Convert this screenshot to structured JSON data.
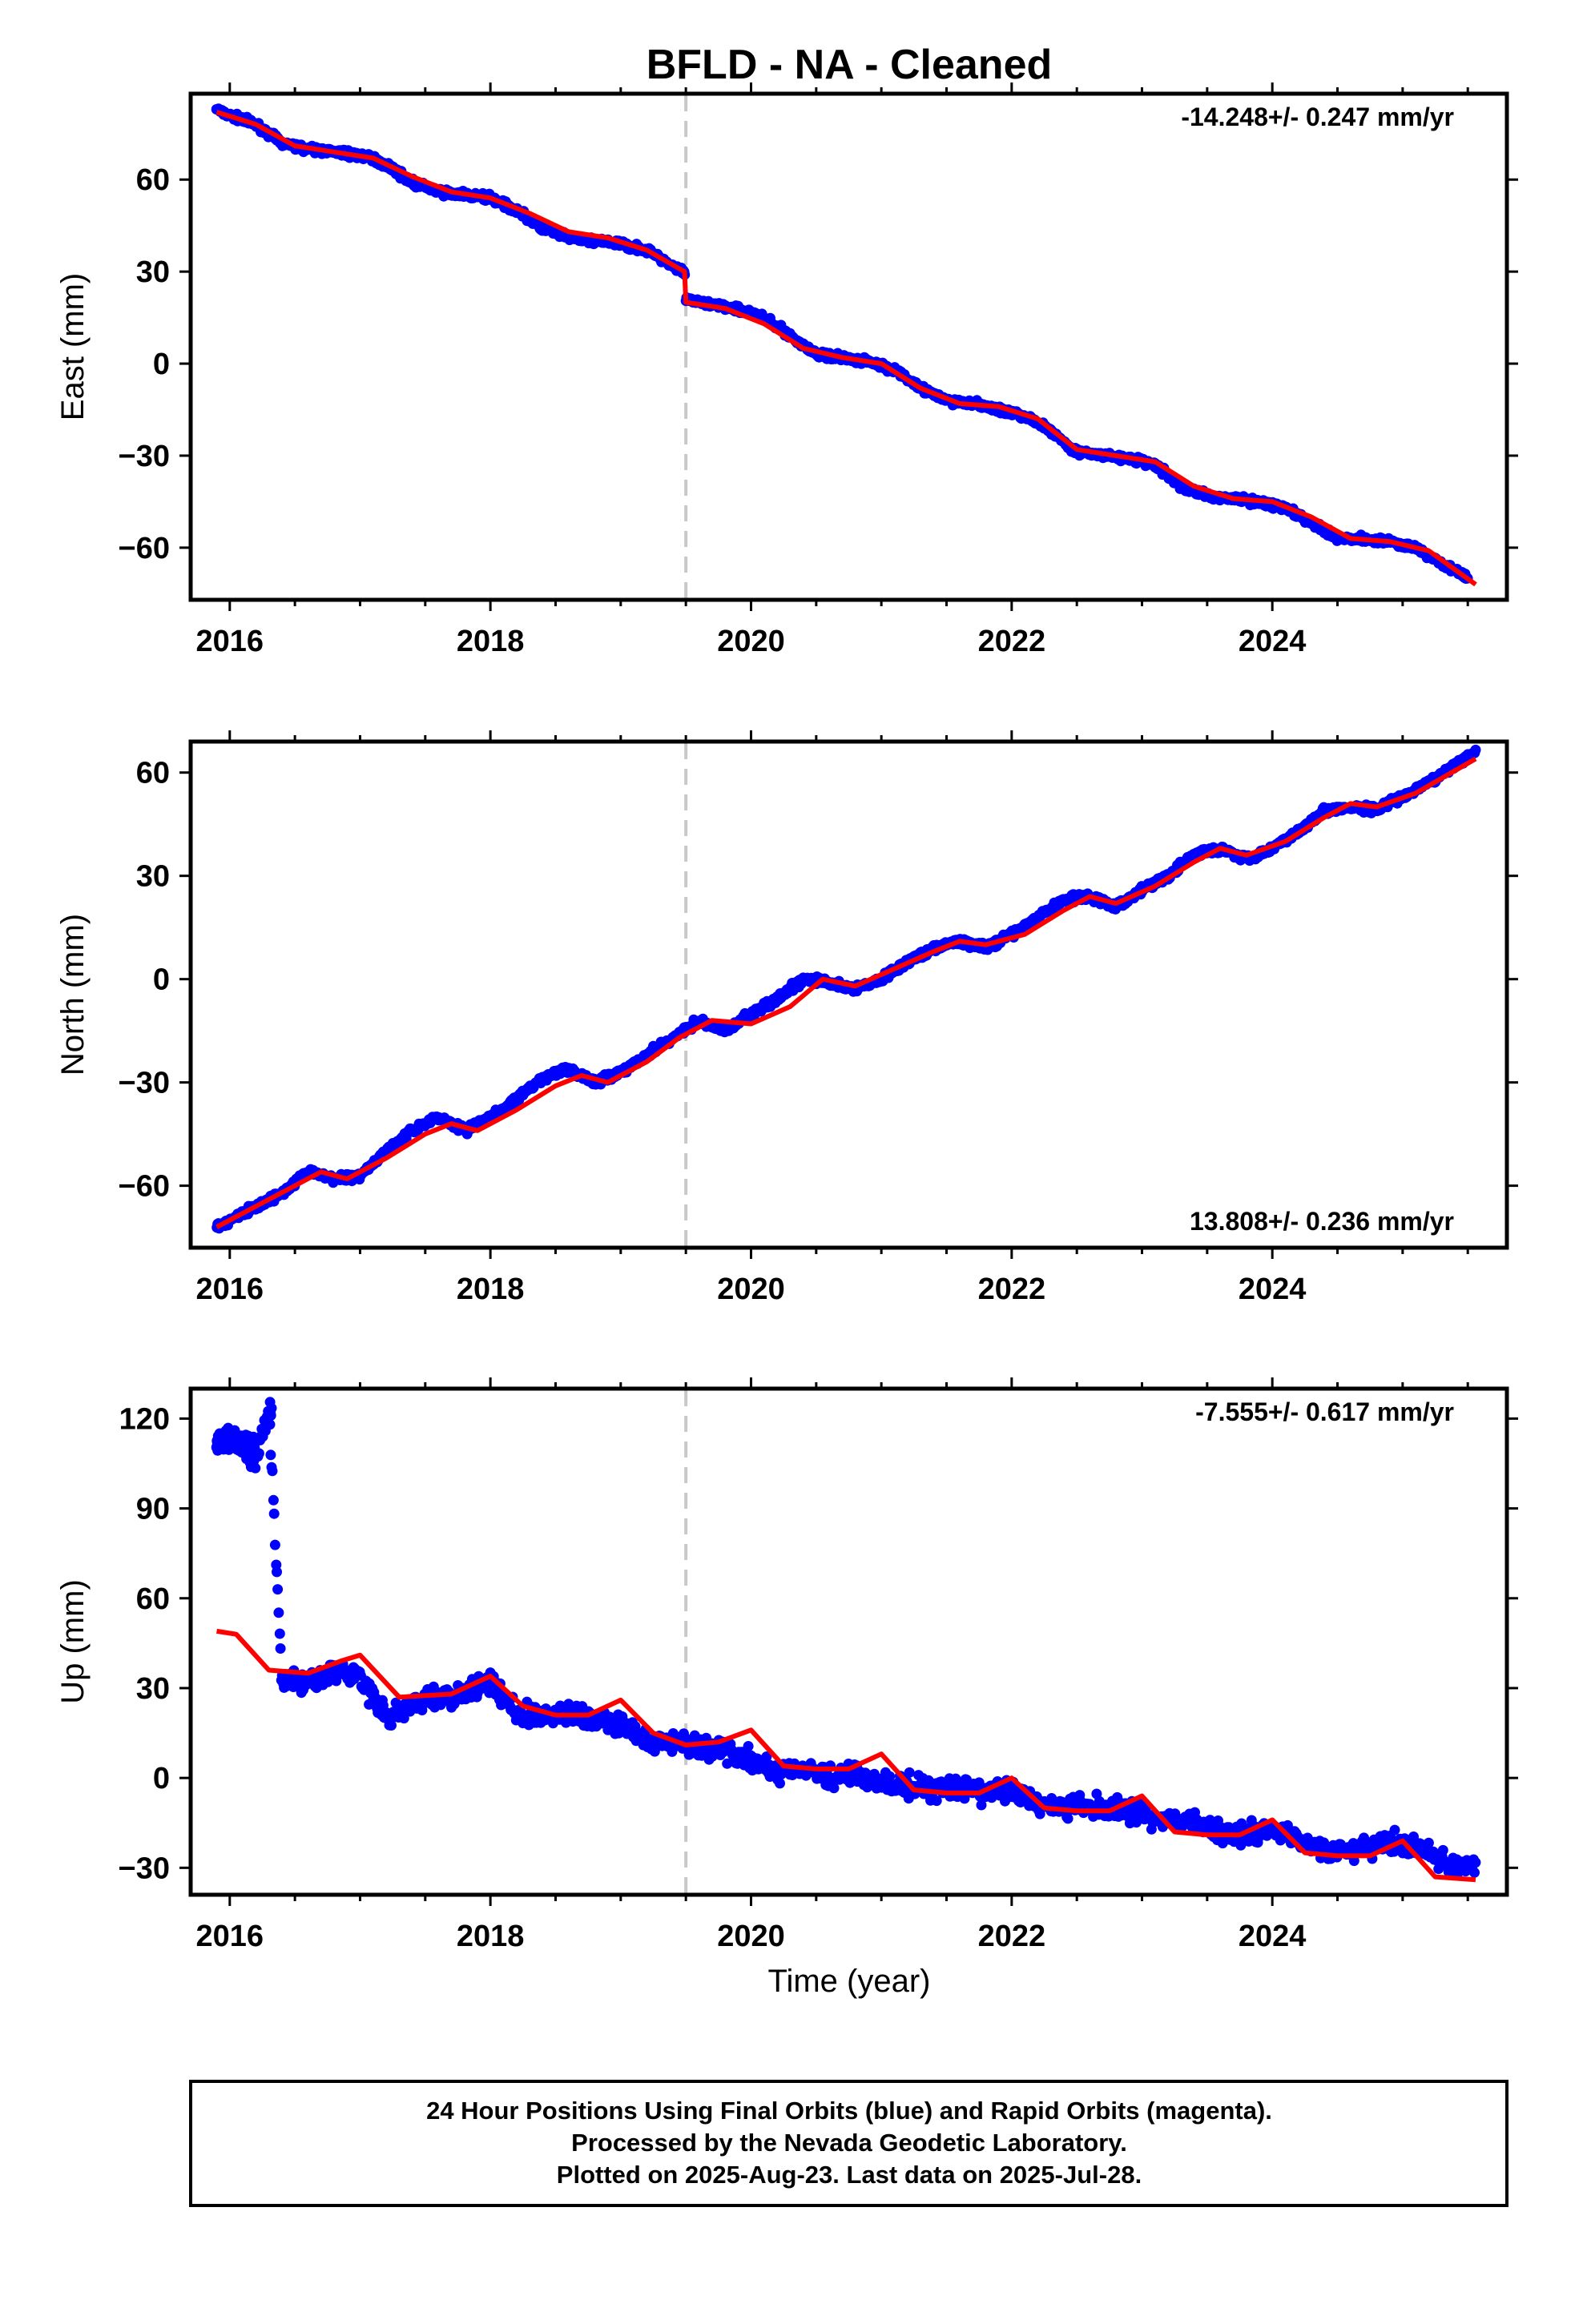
{
  "title": "BFLD  - NA - Cleaned",
  "xlabel": "Time (year)",
  "footer": {
    "line1": "24 Hour Positions Using Final Orbits (blue) and Rapid Orbits (magenta).",
    "line2": "Processed by the Nevada Geodetic Laboratory.",
    "line3": "Plotted on 2025-Aug-23. Last data on 2025-Jul-28."
  },
  "colors": {
    "observations": "#0000ff",
    "model": "#ff0000",
    "offset_line": "#c8c8c8",
    "frame": "#000000"
  },
  "chart_data": [
    {
      "type": "scatter",
      "ylabel": "East (mm)",
      "rate_label": "-14.248+/- 0.247 mm/yr",
      "rate_position": "top-right",
      "xlim": [
        2015.7,
        2025.8
      ],
      "ylim": [
        -77,
        88
      ],
      "xticks": [
        2016,
        2018,
        2020,
        2022,
        2024
      ],
      "yticks": [
        60,
        30,
        0,
        -30,
        -60
      ],
      "offset_epoch": 2019.5,
      "series": [
        {
          "style": "points",
          "x": [
            2015.9,
            2016.0,
            2016.2,
            2016.4,
            2016.6,
            2016.8,
            2017.0,
            2017.2,
            2017.4,
            2017.6,
            2017.8,
            2018.0,
            2018.2,
            2018.4,
            2018.6,
            2018.8,
            2019.0,
            2019.2,
            2019.4,
            2019.49,
            2019.5,
            2019.7,
            2019.9,
            2020.1,
            2020.3,
            2020.5,
            2020.7,
            2020.9,
            2021.1,
            2021.3,
            2021.5,
            2021.7,
            2021.9,
            2022.1,
            2022.3,
            2022.5,
            2022.7,
            2022.9,
            2023.1,
            2023.3,
            2023.5,
            2023.7,
            2023.9,
            2024.1,
            2024.3,
            2024.5,
            2024.7,
            2024.9,
            2025.1,
            2025.3,
            2025.5
          ],
          "y": [
            83,
            81,
            78,
            72,
            70,
            69,
            68,
            65,
            59,
            56,
            55,
            54,
            50,
            44,
            41,
            40,
            39,
            37,
            32,
            30,
            21,
            19,
            18,
            15,
            9,
            3,
            2,
            1,
            -2,
            -8,
            -12,
            -13,
            -15,
            -17,
            -22,
            -29,
            -30,
            -31,
            -33,
            -40,
            -43,
            -44,
            -45,
            -47,
            -52,
            -57,
            -57,
            -58,
            -60,
            -65,
            -70
          ]
        },
        {
          "style": "line",
          "x": [
            2015.9,
            2016.2,
            2016.5,
            2016.8,
            2017.1,
            2017.4,
            2017.7,
            2018.0,
            2018.3,
            2018.6,
            2018.9,
            2019.2,
            2019.49,
            2019.5,
            2019.8,
            2020.1,
            2020.4,
            2020.7,
            2021.0,
            2021.3,
            2021.6,
            2021.9,
            2022.2,
            2022.5,
            2022.8,
            2023.1,
            2023.4,
            2023.7,
            2024.0,
            2024.3,
            2024.6,
            2024.9,
            2025.2,
            2025.56
          ],
          "y": [
            82,
            78,
            71,
            69,
            67,
            61,
            56,
            54,
            49,
            43,
            41,
            37,
            30,
            20,
            18,
            13,
            5,
            2,
            0,
            -8,
            -13,
            -14,
            -18,
            -28,
            -30,
            -32,
            -40,
            -44,
            -45,
            -50,
            -57,
            -58,
            -61,
            -72
          ]
        }
      ]
    },
    {
      "type": "scatter",
      "ylabel": "North (mm)",
      "rate_label": "13.808+/- 0.236 mm/yr",
      "rate_position": "bottom-right",
      "xlim": [
        2015.7,
        2025.8
      ],
      "ylim": [
        -78,
        69
      ],
      "xticks": [
        2016,
        2018,
        2020,
        2022,
        2024
      ],
      "yticks": [
        60,
        30,
        0,
        -30,
        -60
      ],
      "offset_epoch": 2019.5,
      "series": [
        {
          "style": "points",
          "x": [
            2015.9,
            2016.0,
            2016.2,
            2016.4,
            2016.6,
            2016.8,
            2017.0,
            2017.2,
            2017.4,
            2017.6,
            2017.8,
            2018.0,
            2018.2,
            2018.4,
            2018.6,
            2018.8,
            2019.0,
            2019.2,
            2019.4,
            2019.6,
            2019.8,
            2020.0,
            2020.2,
            2020.4,
            2020.6,
            2020.8,
            2021.0,
            2021.2,
            2021.4,
            2021.6,
            2021.8,
            2022.0,
            2022.2,
            2022.4,
            2022.6,
            2022.8,
            2023.0,
            2023.2,
            2023.4,
            2023.6,
            2023.8,
            2024.0,
            2024.2,
            2024.4,
            2024.6,
            2024.8,
            2025.0,
            2025.2,
            2025.4,
            2025.56
          ],
          "y": [
            -72,
            -70,
            -66,
            -62,
            -56,
            -58,
            -57,
            -50,
            -44,
            -40,
            -44,
            -40,
            -35,
            -29,
            -26,
            -30,
            -27,
            -22,
            -17,
            -12,
            -15,
            -10,
            -6,
            0,
            -1,
            -3,
            0,
            5,
            9,
            11,
            9,
            13,
            18,
            23,
            24,
            21,
            26,
            30,
            36,
            38,
            35,
            38,
            43,
            49,
            50,
            49,
            53,
            57,
            62,
            66
          ]
        },
        {
          "style": "line",
          "x": [
            2015.9,
            2016.2,
            2016.5,
            2016.7,
            2016.9,
            2017.2,
            2017.5,
            2017.7,
            2017.9,
            2018.2,
            2018.5,
            2018.7,
            2018.9,
            2019.2,
            2019.45,
            2019.7,
            2020.0,
            2020.3,
            2020.55,
            2020.8,
            2021.1,
            2021.4,
            2021.6,
            2021.8,
            2022.1,
            2022.4,
            2022.6,
            2022.8,
            2023.1,
            2023.4,
            2023.6,
            2023.8,
            2024.1,
            2024.4,
            2024.6,
            2024.8,
            2025.1,
            2025.56
          ],
          "y": [
            -72,
            -66,
            -60,
            -56,
            -58,
            -52,
            -45,
            -42,
            -44,
            -38,
            -31,
            -28,
            -30,
            -24,
            -17,
            -12,
            -13,
            -8,
            0,
            -2,
            3,
            8,
            11,
            10,
            13,
            20,
            24,
            22,
            27,
            34,
            38,
            36,
            40,
            47,
            51,
            50,
            54,
            64
          ]
        }
      ]
    },
    {
      "type": "scatter",
      "ylabel": "Up (mm)",
      "rate_label": "-7.555+/- 0.617 mm/yr",
      "rate_position": "top-right",
      "xlim": [
        2015.7,
        2025.8
      ],
      "ylim": [
        -39,
        130
      ],
      "xticks": [
        2016,
        2018,
        2020,
        2022,
        2024
      ],
      "yticks": [
        120,
        90,
        60,
        30,
        0,
        -30
      ],
      "offset_epoch": 2019.5,
      "series": [
        {
          "style": "points",
          "x": [
            2015.9,
            2016.0,
            2016.1,
            2016.2,
            2016.3,
            2016.4,
            2016.6,
            2016.8,
            2017.0,
            2017.2,
            2017.4,
            2017.6,
            2017.8,
            2018.0,
            2018.2,
            2018.4,
            2018.6,
            2018.8,
            2019.0,
            2019.2,
            2019.4,
            2019.6,
            2019.8,
            2020.0,
            2020.2,
            2020.4,
            2020.6,
            2020.8,
            2021.0,
            2021.2,
            2021.4,
            2021.6,
            2021.8,
            2022.0,
            2022.2,
            2022.4,
            2022.6,
            2022.8,
            2023.0,
            2023.2,
            2023.4,
            2023.6,
            2023.8,
            2024.0,
            2024.2,
            2024.4,
            2024.6,
            2024.8,
            2025.0,
            2025.2,
            2025.4,
            2025.56
          ],
          "y": [
            112,
            115,
            110,
            106,
            124,
            33,
            32,
            36,
            34,
            20,
            25,
            27,
            28,
            32,
            22,
            20,
            22,
            20,
            18,
            12,
            12,
            10,
            9,
            6,
            2,
            3,
            0,
            2,
            -2,
            -3,
            -4,
            -3,
            -5,
            -4,
            -8,
            -10,
            -10,
            -10,
            -12,
            -14,
            -16,
            -18,
            -18,
            -16,
            -20,
            -25,
            -24,
            -22,
            -22,
            -24,
            -30,
            -28
          ]
        },
        {
          "style": "line",
          "x": [
            2015.9,
            2016.05,
            2016.3,
            2016.6,
            2016.85,
            2017.0,
            2017.3,
            2017.7,
            2018.0,
            2018.25,
            2018.5,
            2018.75,
            2019.0,
            2019.25,
            2019.5,
            2019.75,
            2020.0,
            2020.25,
            2020.5,
            2020.75,
            2021.0,
            2021.25,
            2021.5,
            2021.75,
            2022.0,
            2022.25,
            2022.5,
            2022.75,
            2023.0,
            2023.25,
            2023.5,
            2023.75,
            2024.0,
            2024.25,
            2024.5,
            2024.75,
            2025.0,
            2025.25,
            2025.56
          ],
          "y": [
            49,
            48,
            36,
            35,
            39,
            41,
            27,
            28,
            34,
            24,
            21,
            21,
            26,
            15,
            11,
            12,
            16,
            4,
            3,
            3,
            8,
            -4,
            -5,
            -5,
            0,
            -10,
            -11,
            -11,
            -6,
            -18,
            -19,
            -19,
            -14,
            -25,
            -26,
            -26,
            -21,
            -33,
            -34
          ]
        }
      ]
    }
  ]
}
